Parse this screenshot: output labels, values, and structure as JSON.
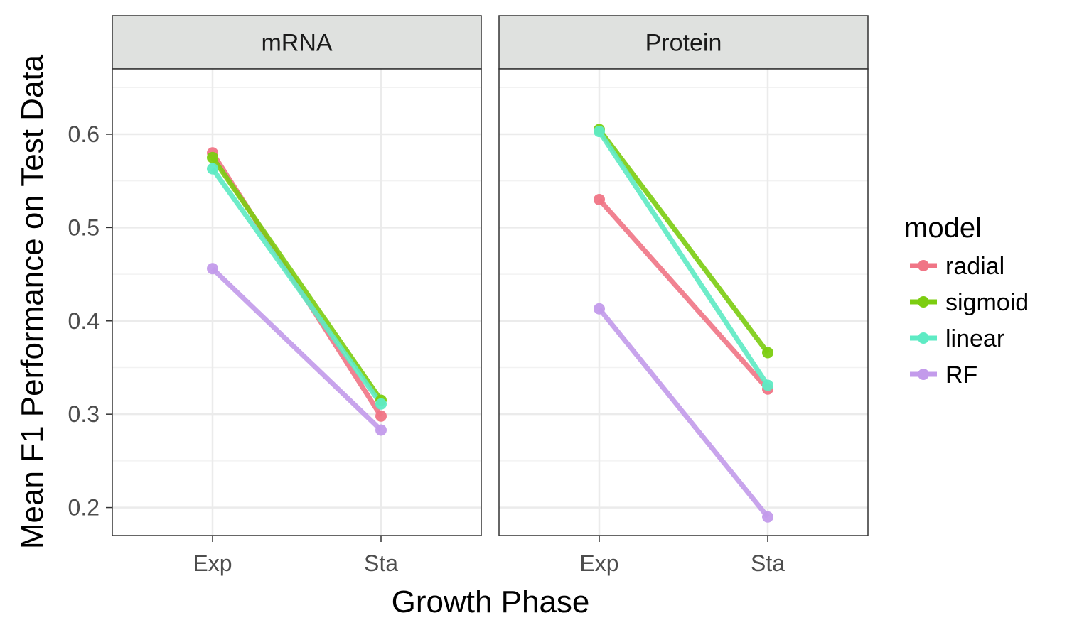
{
  "chart_data": {
    "type": "line",
    "ylabel": "Mean F1 Performance on Test Data",
    "xlabel": "Growth Phase",
    "x": [
      "Exp",
      "Sta"
    ],
    "ylim": [
      0.17,
      0.67
    ],
    "yticks": [
      0.2,
      0.3,
      0.4,
      0.5,
      0.6
    ],
    "ytick_labels": [
      "0.2",
      "0.3",
      "0.4",
      "0.5",
      "0.6"
    ],
    "grid": true,
    "legend": {
      "title": "model",
      "position": "right",
      "entries": [
        "radial",
        "sigmoid",
        "linear",
        "RF"
      ]
    },
    "colors": {
      "radial": "#F07586",
      "sigmoid": "#7CCD10",
      "linear": "#5EEBC4",
      "RF": "#C39BEB"
    },
    "panels": [
      {
        "title": "mRNA",
        "series": [
          {
            "name": "radial",
            "values": [
              0.58,
              0.298
            ]
          },
          {
            "name": "sigmoid",
            "values": [
              0.575,
              0.315
            ]
          },
          {
            "name": "linear",
            "values": [
              0.563,
              0.311
            ]
          },
          {
            "name": "RF",
            "values": [
              0.456,
              0.283
            ]
          }
        ]
      },
      {
        "title": "Protein",
        "series": [
          {
            "name": "radial",
            "values": [
              0.53,
              0.327
            ]
          },
          {
            "name": "sigmoid",
            "values": [
              0.605,
              0.366
            ]
          },
          {
            "name": "linear",
            "values": [
              0.603,
              0.331
            ]
          },
          {
            "name": "RF",
            "values": [
              0.413,
              0.19
            ]
          }
        ]
      }
    ]
  }
}
